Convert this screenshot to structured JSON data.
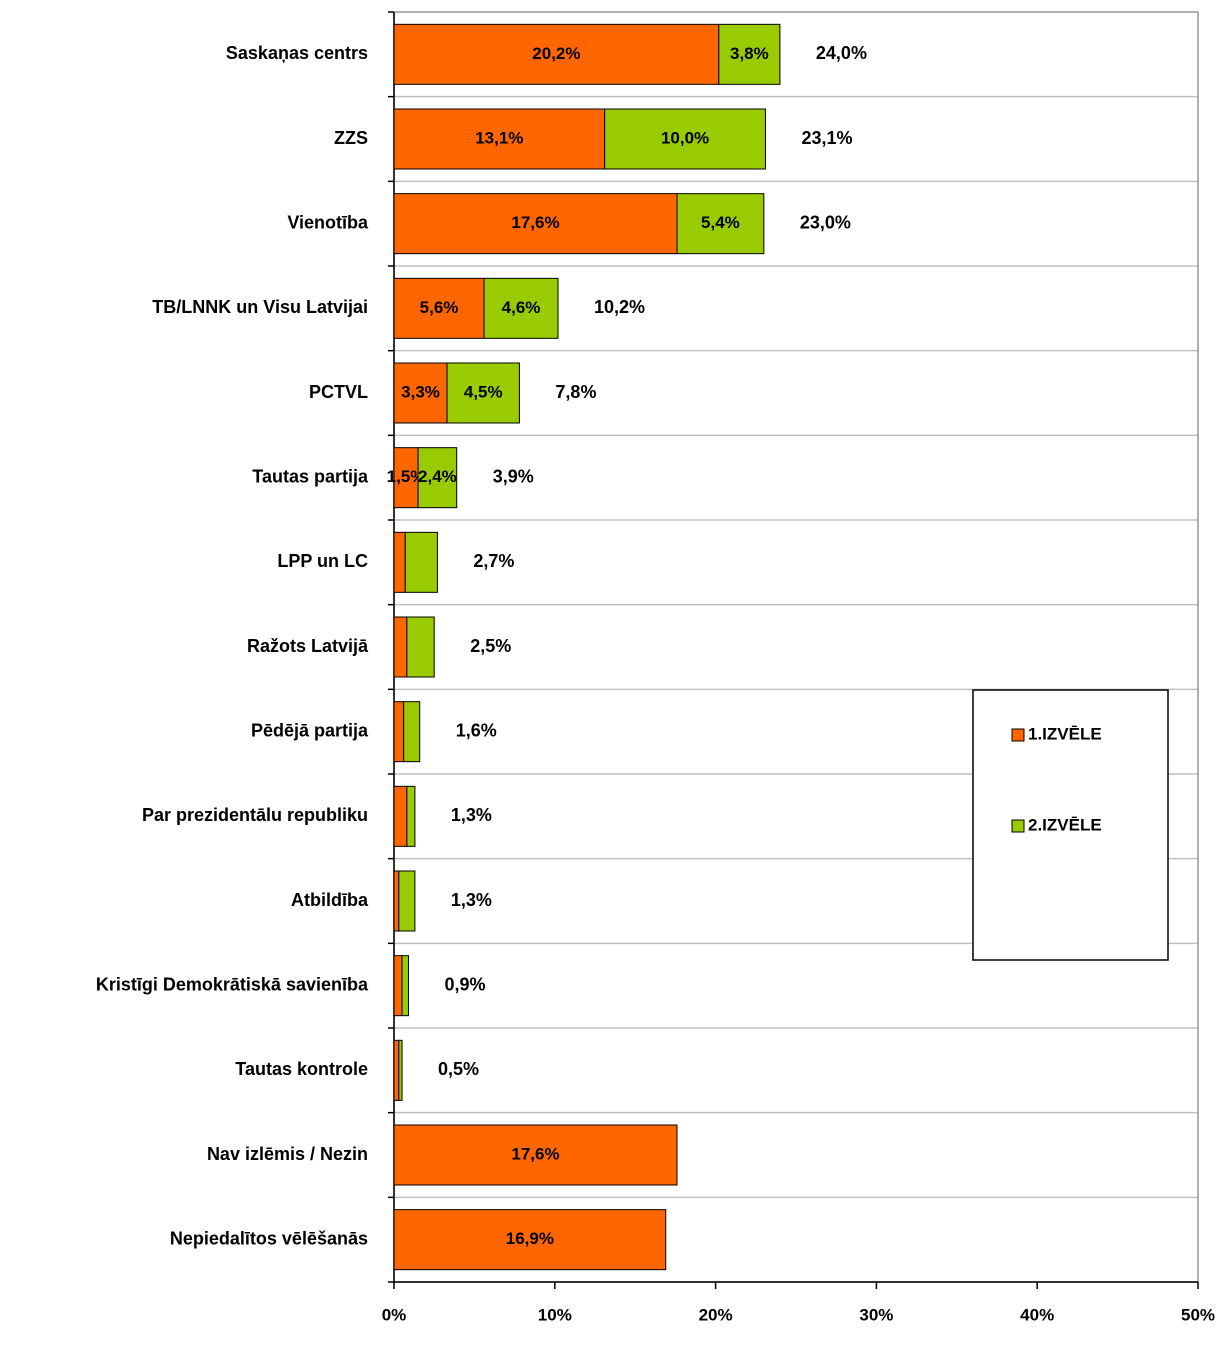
{
  "chart_data": {
    "type": "stacked_barh",
    "categories": [
      "Saskaņas centrs",
      "ZZS",
      "Vienotība",
      "TB/LNNK un Visu Latvijai",
      "PCTVL",
      "Tautas partija",
      "LPP un LC",
      "Ražots Latvijā",
      "Pēdējā partija",
      "Par prezidentālu republiku",
      "Atbildība",
      "Kristīgi Demokrātiskā savienība",
      "Tautas kontrole",
      "Nav izlēmis / Nezin",
      "Nepiedalītos vēlēšanās"
    ],
    "series": [
      {
        "name": "1.IZVĒLE",
        "color": "#ff6600",
        "values": [
          20.2,
          13.1,
          17.6,
          5.6,
          3.3,
          1.5,
          0.7,
          0.8,
          0.6,
          0.8,
          0.3,
          0.5,
          0.3,
          17.6,
          16.9
        ],
        "value_labels": [
          "20,2%",
          "13,1%",
          "17,6%",
          "5,6%",
          "3,3%",
          "1,5%",
          null,
          null,
          null,
          null,
          null,
          null,
          null,
          "17,6%",
          "16,9%"
        ]
      },
      {
        "name": "2.IZVĒLE",
        "color": "#99cc00",
        "values": [
          3.8,
          10.0,
          5.4,
          4.6,
          4.5,
          2.4,
          2.0,
          1.7,
          1.0,
          0.5,
          1.0,
          0.4,
          0.2,
          null,
          null
        ],
        "value_labels": [
          "3,8%",
          "10,0%",
          "5,4%",
          "4,6%",
          "4,5%",
          "2,4%",
          null,
          null,
          null,
          null,
          null,
          null,
          null,
          null,
          null
        ]
      }
    ],
    "total_labels": [
      "24,0%",
      "23,1%",
      "23,0%",
      "10,2%",
      "7,8%",
      "3,9%",
      "2,7%",
      "2,5%",
      "1,6%",
      "1,3%",
      "1,3%",
      "0,9%",
      "0,5%",
      null,
      null
    ],
    "xlim": [
      0,
      50
    ],
    "xticks": [
      {
        "value": 0,
        "label": "0%"
      },
      {
        "value": 10,
        "label": "10%"
      },
      {
        "value": 20,
        "label": "20%"
      },
      {
        "value": 30,
        "label": "30%"
      },
      {
        "value": 40,
        "label": "40%"
      },
      {
        "value": 50,
        "label": "50%"
      }
    ],
    "grid": true,
    "legend": "right"
  }
}
